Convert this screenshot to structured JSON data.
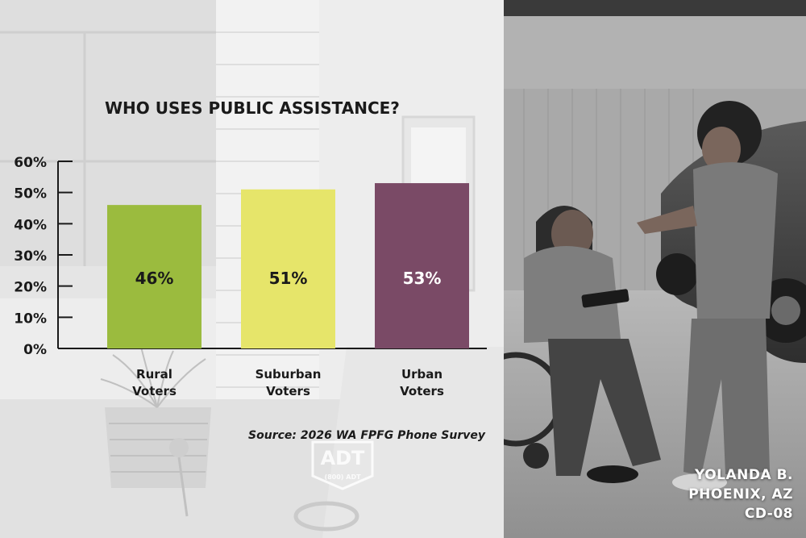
{
  "chart_data": {
    "type": "bar",
    "title": "WHO USES PUBLIC ASSISTANCE?",
    "categories": [
      [
        "Rural",
        "Voters"
      ],
      [
        "Suburban",
        "Voters"
      ],
      [
        "Urban",
        "Voters"
      ]
    ],
    "values": [
      46,
      51,
      53
    ],
    "value_labels": [
      "46%",
      "51%",
      "53%"
    ],
    "bar_colors": [
      "#9bbb3e",
      "#e6e56a",
      "#7a4a66"
    ],
    "value_label_colors": [
      "#1a1a1a",
      "#1a1a1a",
      "#ffffff"
    ],
    "ylim": [
      0,
      60
    ],
    "y_ticks": [
      0,
      10,
      20,
      30,
      40,
      50,
      60
    ],
    "y_tick_labels": [
      "0%",
      "10%",
      "20%",
      "30%",
      "40%",
      "50%",
      "60%"
    ],
    "grid": false,
    "legend": "none",
    "xlabel": "",
    "ylabel": "",
    "source": "Source: 2026 WA FPFG Phone Survey"
  },
  "photo_caption": {
    "name": "YOLANDA B.",
    "place": "PHOENIX, AZ",
    "district": "CD-08"
  },
  "logo": {
    "brand": "ADT",
    "phone": "(800) ADT"
  },
  "colors": {
    "left_photo_tint": "#e4e4e4",
    "right_photo_bg": "#8a8a8a",
    "axis": "#1a1a1a"
  }
}
